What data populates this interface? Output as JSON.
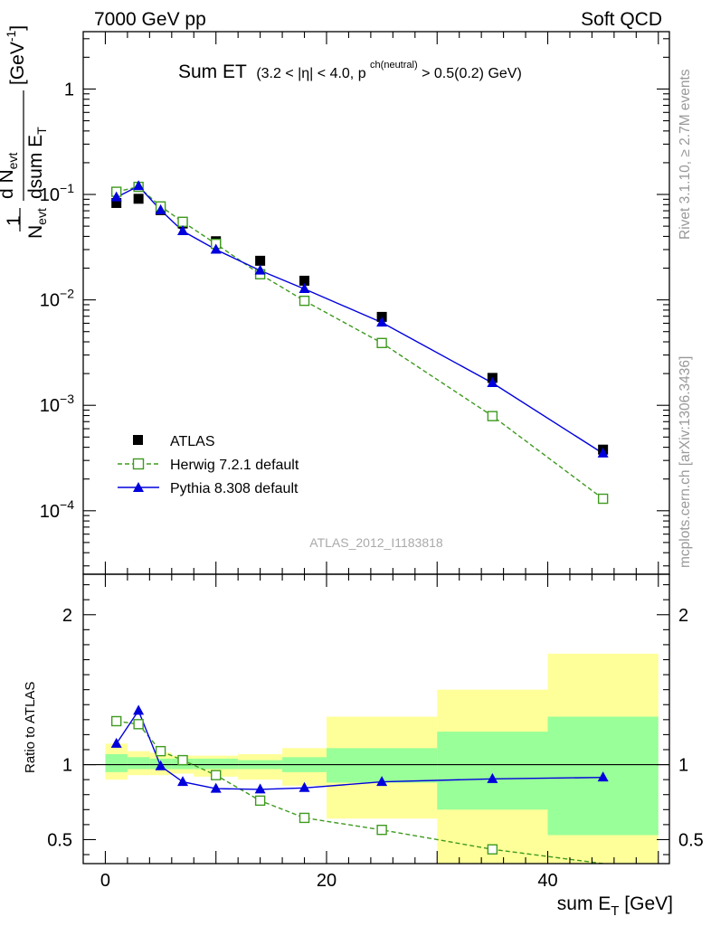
{
  "header": {
    "left": "7000 GeV pp",
    "right": "Soft QCD"
  },
  "side_labels": {
    "rivet": "Rivet 3.1.10, ≥ 2.7M events",
    "mcplots": "mcplots.cern.ch [arXiv:1306.3436]"
  },
  "watermark": "ATLAS_2012_I1183818",
  "title": {
    "main": "Sum ET",
    "detail": "(3.2 < |η| < 4.0, p",
    "sup": "ch(neutral)",
    "tail": " > 0.5(0.2) GeV)"
  },
  "colors": {
    "atlas": "#000000",
    "herwig": "#3f9a1f",
    "pythia": "#0000dd",
    "band_inner": "#99ff99",
    "band_outer": "#ffff99"
  },
  "chart_data": [
    {
      "type": "line",
      "name": "main",
      "y_scale": "log",
      "xlim": [
        -2,
        51
      ],
      "ylim": [
        2.5e-05,
        3.5
      ],
      "xlabel": "sum E_T [GeV]",
      "ylabel": "1/N_evt dN_evt/dsum E_T [GeV^-1]",
      "ytick_labels": [
        "1",
        "10^-1",
        "10^-2",
        "10^-3",
        "10^-4"
      ],
      "ytick_values": [
        1,
        0.1,
        0.01,
        0.001,
        0.0001
      ],
      "legend_position": "bottom-left",
      "legend": [
        "ATLAS",
        "Herwig 7.2.1 default",
        "Pythia 8.308 default"
      ],
      "series": [
        {
          "name": "ATLAS",
          "marker": "filled-square",
          "x": [
            1,
            3,
            5,
            7,
            10,
            14,
            18,
            25,
            35,
            45
          ],
          "y": [
            0.083,
            0.091,
            0.071,
            0.053,
            0.036,
            0.0235,
            0.0152,
            0.0069,
            0.00182,
            0.00038
          ]
        },
        {
          "name": "Herwig 7.2.1 default",
          "marker": "open-square",
          "line": "dashed",
          "x": [
            1,
            3,
            5,
            7,
            10,
            14,
            18,
            25,
            35,
            45
          ],
          "y": [
            0.106,
            0.118,
            0.077,
            0.055,
            0.034,
            0.0175,
            0.0098,
            0.0039,
            0.00079,
            0.00013
          ]
        },
        {
          "name": "Pythia 8.308 default",
          "marker": "filled-triangle",
          "line": "solid",
          "x": [
            1,
            3,
            5,
            7,
            10,
            14,
            18,
            25,
            35,
            45
          ],
          "y": [
            0.094,
            0.12,
            0.071,
            0.045,
            0.03,
            0.019,
            0.0127,
            0.0061,
            0.00163,
            0.00035
          ]
        }
      ]
    },
    {
      "type": "line",
      "name": "ratio",
      "xlim": [
        -2,
        51
      ],
      "ylim": [
        0.34,
        2.27
      ],
      "ylabel": "Ratio to ATLAS",
      "xlabel": "sum E_T [GeV]",
      "xtick_labels": [
        "0",
        "20",
        "40"
      ],
      "xtick_values": [
        0,
        20,
        40
      ],
      "ytick_labels": [
        "0.5",
        "1",
        "2"
      ],
      "ytick_values": [
        0.5,
        1,
        2
      ],
      "bands": {
        "x_edges": [
          0,
          2,
          4,
          6,
          8,
          12,
          16,
          20,
          30,
          40,
          50
        ],
        "inner_lo": [
          0.95,
          0.97,
          0.97,
          0.97,
          0.97,
          0.97,
          0.95,
          0.88,
          0.7,
          0.53
        ],
        "inner_hi": [
          1.07,
          1.05,
          1.04,
          1.04,
          1.04,
          1.03,
          1.05,
          1.11,
          1.22,
          1.32
        ],
        "outer_lo": [
          0.9,
          0.93,
          0.93,
          0.94,
          0.92,
          0.9,
          0.86,
          0.64,
          0.34,
          0.34
        ],
        "outer_hi": [
          1.14,
          1.09,
          1.08,
          1.06,
          1.06,
          1.07,
          1.11,
          1.32,
          1.5,
          1.74
        ]
      },
      "series": [
        {
          "name": "Herwig 7.2.1 default",
          "x": [
            1,
            3,
            5,
            7,
            10,
            14,
            18,
            25,
            35,
            45
          ],
          "y": [
            1.29,
            1.27,
            1.09,
            1.03,
            0.93,
            0.76,
            0.645,
            0.565,
            0.435,
            0.34
          ]
        },
        {
          "name": "Pythia 8.308 default",
          "x": [
            1,
            3,
            5,
            7,
            10,
            14,
            18,
            25,
            35,
            45
          ],
          "y": [
            1.14,
            1.36,
            0.99,
            0.885,
            0.84,
            0.835,
            0.845,
            0.885,
            0.905,
            0.915
          ]
        }
      ]
    }
  ]
}
